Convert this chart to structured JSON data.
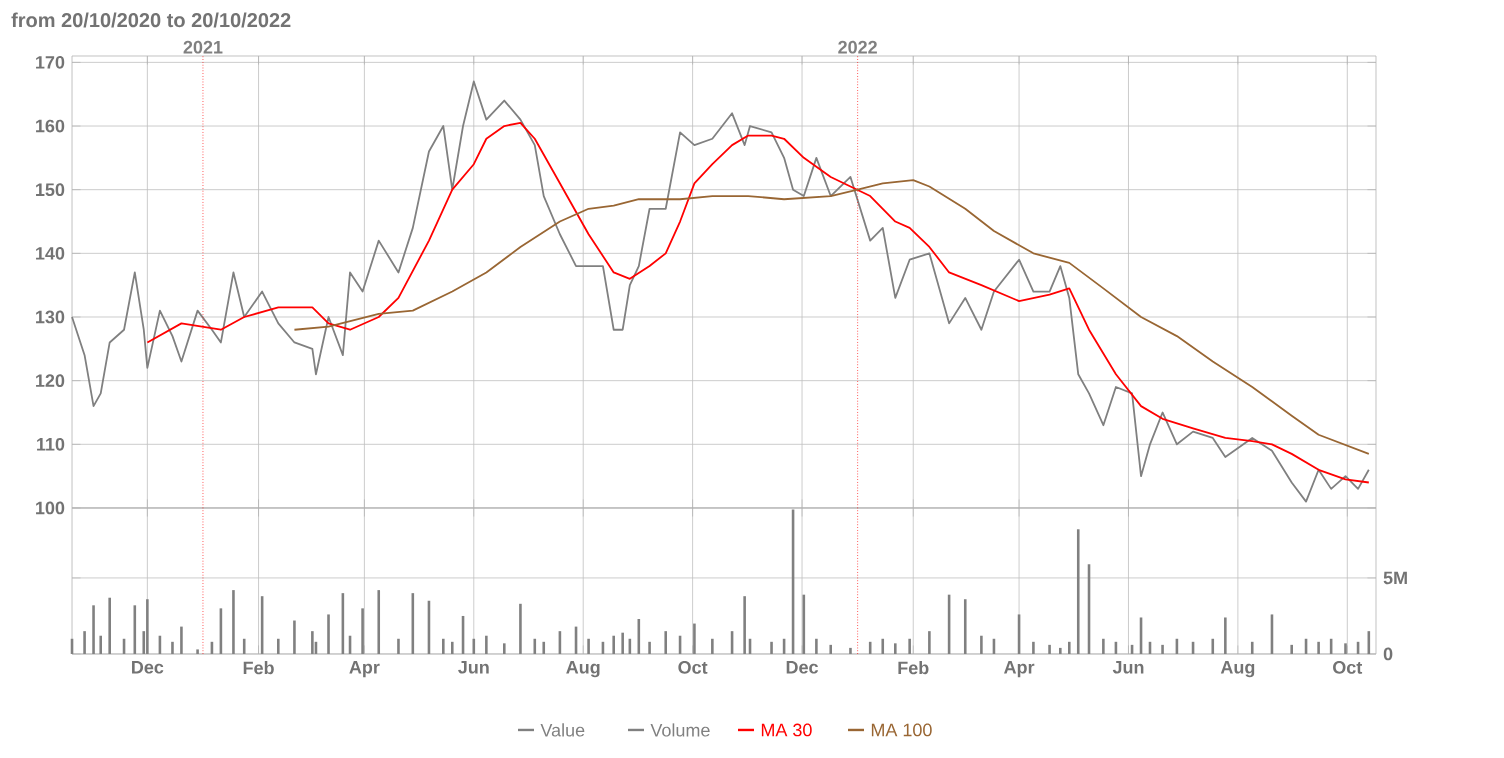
{
  "chart_data": [
    {
      "type": "line",
      "title": "from 20/10/2020 to 20/10/2022",
      "xlim": [
        "2020-10-20",
        "2022-10-17"
      ],
      "ylim": [
        100,
        171
      ],
      "yticks": [
        100,
        110,
        120,
        130,
        140,
        150,
        160,
        170
      ],
      "xticks": [
        {
          "value": "2020-12-01",
          "label": null
        },
        {
          "value": "2021-02-01",
          "label": null
        },
        {
          "value": "2021-04-01",
          "label": null
        },
        {
          "value": "2021-06-01",
          "label": null
        },
        {
          "value": "2021-08-01",
          "label": null
        },
        {
          "value": "2021-10-01",
          "label": null
        },
        {
          "value": "2021-12-01",
          "label": null
        },
        {
          "value": "2022-02-01",
          "label": null
        },
        {
          "value": "2022-04-01",
          "label": null
        },
        {
          "value": "2022-06-01",
          "label": null
        },
        {
          "value": "2022-08-01",
          "label": null
        },
        {
          "value": "2022-10-01",
          "label": null
        }
      ],
      "tick_labels": "y",
      "grid": true,
      "legend": "bottom",
      "ref_lines": [
        {
          "axis": "x",
          "value": "2021-01-01",
          "label": "2021",
          "color": "#ff0000",
          "line_style": "dotted"
        },
        {
          "axis": "x",
          "value": "2022-01-01",
          "label": "2022",
          "color": "#ff0000",
          "line_style": "dotted"
        }
      ],
      "x": [
        "2020-10-20",
        "2020-10-27",
        "2020-11-01",
        "2020-11-05",
        "2020-11-10",
        "2020-11-18",
        "2020-11-24",
        "2020-11-29",
        "2020-12-01",
        "2020-12-08",
        "2020-12-15",
        "2020-12-20",
        "2020-12-29",
        "2021-01-06",
        "2021-01-11",
        "2021-01-18",
        "2021-01-24",
        "2021-02-03",
        "2021-02-12",
        "2021-02-21",
        "2021-03-03",
        "2021-03-05",
        "2021-03-12",
        "2021-03-20",
        "2021-03-24",
        "2021-03-31",
        "2021-04-09",
        "2021-04-20",
        "2021-04-28",
        "2021-05-07",
        "2021-05-15",
        "2021-05-20",
        "2021-05-26",
        "2021-06-01",
        "2021-06-08",
        "2021-06-18",
        "2021-06-27",
        "2021-07-05",
        "2021-07-10",
        "2021-07-19",
        "2021-07-28",
        "2021-08-04",
        "2021-08-12",
        "2021-08-18",
        "2021-08-23",
        "2021-08-27",
        "2021-09-01",
        "2021-09-07",
        "2021-09-16",
        "2021-09-24",
        "2021-10-02",
        "2021-10-12",
        "2021-10-23",
        "2021-10-30",
        "2021-11-02",
        "2021-11-14",
        "2021-11-21",
        "2021-11-26",
        "2021-12-02",
        "2021-12-09",
        "2021-12-17",
        "2021-12-28",
        "2022-01-08",
        "2022-01-15",
        "2022-01-22",
        "2022-01-30",
        "2022-02-10",
        "2022-02-21",
        "2022-03-02",
        "2022-03-11",
        "2022-03-18",
        "2022-04-01",
        "2022-04-09",
        "2022-04-18",
        "2022-04-24",
        "2022-04-29",
        "2022-05-04",
        "2022-05-10",
        "2022-05-18",
        "2022-05-25",
        "2022-06-03",
        "2022-06-08",
        "2022-06-13",
        "2022-06-20",
        "2022-06-28",
        "2022-07-07",
        "2022-07-18",
        "2022-07-25",
        "2022-08-09",
        "2022-08-20",
        "2022-08-31",
        "2022-09-08",
        "2022-09-15",
        "2022-09-22",
        "2022-09-30",
        "2022-10-07",
        "2022-10-13"
      ],
      "series": [
        {
          "name": "Value",
          "color": "#808080",
          "values": [
            130,
            124,
            116,
            118,
            126,
            128,
            137,
            128,
            122,
            131,
            127,
            123,
            131,
            128,
            126,
            137,
            130,
            134,
            129,
            126,
            125,
            121,
            130,
            124,
            137,
            134,
            142,
            137,
            144,
            156,
            160,
            150,
            160,
            167,
            161,
            164,
            161,
            157,
            149,
            143,
            138,
            138,
            138,
            128,
            128,
            135,
            138,
            147,
            147,
            159,
            157,
            158,
            162,
            157,
            160,
            159,
            155,
            150,
            149,
            155,
            149,
            152,
            142,
            144,
            133,
            139,
            140,
            129,
            133,
            128,
            134,
            139,
            134,
            134,
            138,
            133,
            121,
            118,
            113,
            119,
            118,
            105,
            110,
            115,
            110,
            112,
            111,
            108,
            111,
            109,
            104,
            101,
            106,
            103,
            105,
            103,
            106
          ]
        },
        {
          "name": "MA 30",
          "color": "#ff0000",
          "x": [
            "2020-12-01",
            "2020-12-20",
            "2021-01-11",
            "2021-01-24",
            "2021-02-12",
            "2021-03-03",
            "2021-03-12",
            "2021-03-24",
            "2021-04-09",
            "2021-04-20",
            "2021-05-07",
            "2021-05-20",
            "2021-06-01",
            "2021-06-08",
            "2021-06-18",
            "2021-06-27",
            "2021-07-05",
            "2021-07-19",
            "2021-08-04",
            "2021-08-18",
            "2021-08-27",
            "2021-09-07",
            "2021-09-16",
            "2021-09-24",
            "2021-10-02",
            "2021-10-12",
            "2021-10-23",
            "2021-11-01",
            "2021-11-14",
            "2021-11-21",
            "2021-12-02",
            "2021-12-17",
            "2021-12-28",
            "2022-01-08",
            "2022-01-22",
            "2022-01-30",
            "2022-02-10",
            "2022-02-21",
            "2022-03-11",
            "2022-04-01",
            "2022-04-18",
            "2022-04-29",
            "2022-05-10",
            "2022-05-25",
            "2022-06-08",
            "2022-06-20",
            "2022-07-07",
            "2022-07-25",
            "2022-08-09",
            "2022-08-20",
            "2022-08-31",
            "2022-09-15",
            "2022-09-30",
            "2022-10-13"
          ],
          "values": [
            126,
            129,
            128,
            130,
            131.5,
            131.5,
            129,
            128,
            130,
            133,
            142,
            150,
            154,
            158,
            160,
            160.5,
            158,
            151,
            143,
            137,
            136,
            138,
            140,
            145,
            151,
            154,
            157,
            158.5,
            158.5,
            158,
            155,
            152,
            150.5,
            149,
            145,
            144,
            141,
            137,
            135,
            132.5,
            133.5,
            134.5,
            128,
            121,
            116,
            114,
            112.5,
            111,
            110.5,
            110,
            108.5,
            106,
            104.5,
            104
          ]
        },
        {
          "name": "MA 100",
          "color": "#996633",
          "x": [
            "2021-02-21",
            "2021-03-12",
            "2021-04-09",
            "2021-04-28",
            "2021-05-20",
            "2021-06-08",
            "2021-06-27",
            "2021-07-19",
            "2021-08-04",
            "2021-08-18",
            "2021-09-01",
            "2021-09-24",
            "2021-10-12",
            "2021-11-01",
            "2021-11-21",
            "2021-12-17",
            "2022-01-01",
            "2022-01-15",
            "2022-02-01",
            "2022-02-10",
            "2022-03-02",
            "2022-03-18",
            "2022-04-09",
            "2022-04-29",
            "2022-05-18",
            "2022-06-08",
            "2022-06-28",
            "2022-07-18",
            "2022-08-09",
            "2022-08-31",
            "2022-09-15",
            "2022-10-13"
          ],
          "values": [
            128,
            128.5,
            130.5,
            131,
            134,
            137,
            141,
            145,
            147,
            147.5,
            148.5,
            148.5,
            149,
            149,
            148.5,
            149,
            150,
            151,
            151.5,
            150.5,
            147,
            143.5,
            140,
            138.5,
            134.5,
            130,
            127,
            123,
            119,
            114.5,
            111.5,
            108.5
          ]
        }
      ]
    },
    {
      "type": "bar",
      "xlim": [
        "2020-10-20",
        "2022-10-17"
      ],
      "ylim": [
        0,
        9600000
      ],
      "yticks": [
        0,
        {
          "value": 5000000,
          "label": "5M"
        }
      ],
      "grid": true,
      "legend": "bottom",
      "xticks": [
        {
          "value": "2020-12-01",
          "label": "Dec"
        },
        {
          "value": "2021-02-01",
          "label": "Feb"
        },
        {
          "value": "2021-04-01",
          "label": "Apr"
        },
        {
          "value": "2021-06-01",
          "label": "Jun"
        },
        {
          "value": "2021-08-01",
          "label": "Aug"
        },
        {
          "value": "2021-10-01",
          "label": "Oct"
        },
        {
          "value": "2021-12-01",
          "label": "Dec"
        },
        {
          "value": "2022-02-01",
          "label": "Feb"
        },
        {
          "value": "2022-04-01",
          "label": "Apr"
        },
        {
          "value": "2022-06-01",
          "label": "Jun"
        },
        {
          "value": "2022-08-01",
          "label": "Aug"
        },
        {
          "value": "2022-10-01",
          "label": "Oct"
        }
      ],
      "ref_lines": [
        {
          "axis": "x",
          "value": "2021-01-01",
          "color": "#ff0000",
          "line_style": "dotted"
        },
        {
          "axis": "x",
          "value": "2022-01-01",
          "color": "#ff0000",
          "line_style": "dotted"
        }
      ],
      "x": [
        "2020-10-20",
        "2020-10-27",
        "2020-11-01",
        "2020-11-05",
        "2020-11-10",
        "2020-11-18",
        "2020-11-24",
        "2020-11-29",
        "2020-12-01",
        "2020-12-08",
        "2020-12-15",
        "2020-12-20",
        "2020-12-29",
        "2021-01-06",
        "2021-01-11",
        "2021-01-18",
        "2021-01-24",
        "2021-02-03",
        "2021-02-12",
        "2021-02-21",
        "2021-03-03",
        "2021-03-05",
        "2021-03-12",
        "2021-03-20",
        "2021-03-24",
        "2021-03-31",
        "2021-04-09",
        "2021-04-20",
        "2021-04-28",
        "2021-05-07",
        "2021-05-15",
        "2021-05-20",
        "2021-05-26",
        "2021-06-01",
        "2021-06-08",
        "2021-06-18",
        "2021-06-27",
        "2021-07-05",
        "2021-07-10",
        "2021-07-19",
        "2021-07-28",
        "2021-08-04",
        "2021-08-12",
        "2021-08-18",
        "2021-08-23",
        "2021-08-27",
        "2021-09-01",
        "2021-09-07",
        "2021-09-16",
        "2021-09-24",
        "2021-10-02",
        "2021-10-12",
        "2021-10-23",
        "2021-10-30",
        "2021-11-02",
        "2021-11-14",
        "2021-11-21",
        "2021-11-26",
        "2021-12-02",
        "2021-12-09",
        "2021-12-17",
        "2021-12-28",
        "2022-01-08",
        "2022-01-15",
        "2022-01-22",
        "2022-01-30",
        "2022-02-10",
        "2022-02-21",
        "2022-03-02",
        "2022-03-11",
        "2022-03-18",
        "2022-04-01",
        "2022-04-09",
        "2022-04-18",
        "2022-04-24",
        "2022-04-29",
        "2022-05-04",
        "2022-05-10",
        "2022-05-18",
        "2022-05-25",
        "2022-06-03",
        "2022-06-08",
        "2022-06-13",
        "2022-06-20",
        "2022-06-28",
        "2022-07-07",
        "2022-07-18",
        "2022-07-25",
        "2022-08-09",
        "2022-08-20",
        "2022-08-31",
        "2022-09-08",
        "2022-09-15",
        "2022-09-22",
        "2022-09-30",
        "2022-10-07",
        "2022-10-13"
      ],
      "series": [
        {
          "name": "Volume",
          "color": "#808080",
          "values": [
            1000000,
            1500000,
            3200000,
            1200000,
            3700000,
            1000000,
            3200000,
            1500000,
            3600000,
            1200000,
            800000,
            1800000,
            300000,
            800000,
            3000000,
            4200000,
            1000000,
            3800000,
            1000000,
            2200000,
            1500000,
            800000,
            2600000,
            4000000,
            1200000,
            3000000,
            4200000,
            1000000,
            4000000,
            3500000,
            1000000,
            800000,
            2500000,
            1000000,
            1200000,
            700000,
            3300000,
            1000000,
            800000,
            1500000,
            1800000,
            1000000,
            800000,
            1200000,
            1400000,
            1000000,
            2300000,
            800000,
            1500000,
            1200000,
            2000000,
            1000000,
            1500000,
            3800000,
            1000000,
            800000,
            1000000,
            9500000,
            3900000,
            1000000,
            600000,
            400000,
            800000,
            1000000,
            700000,
            1000000,
            1500000,
            3900000,
            3600000,
            1200000,
            1000000,
            2600000,
            800000,
            600000,
            400000,
            800000,
            8200000,
            5900000,
            1000000,
            800000,
            600000,
            2400000,
            800000,
            600000,
            1000000,
            800000,
            1000000,
            2400000,
            800000,
            2600000,
            600000,
            1000000,
            800000,
            1000000,
            700000,
            800000,
            1500000
          ]
        }
      ]
    }
  ]
}
